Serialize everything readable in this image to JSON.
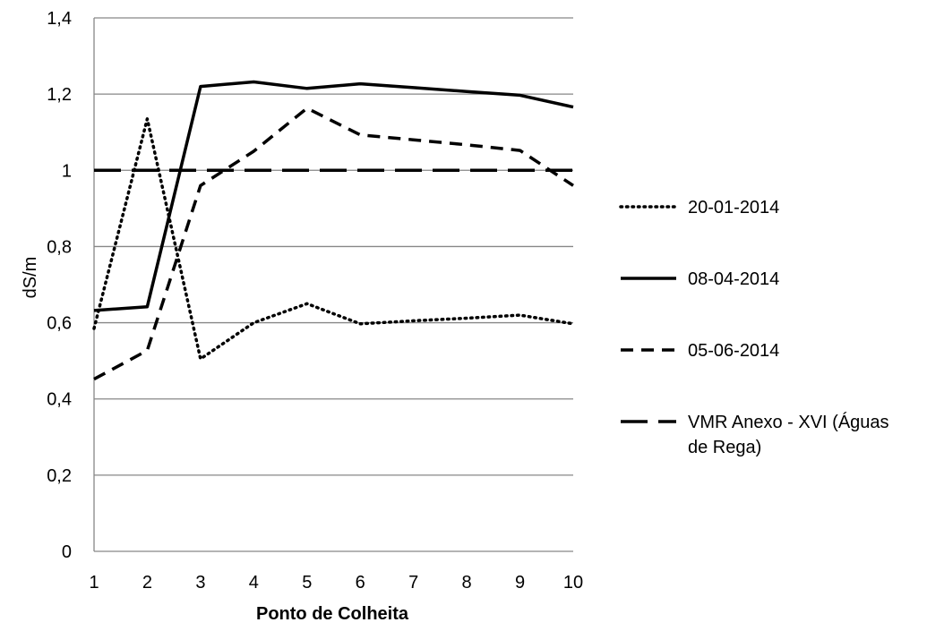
{
  "chart_data": {
    "type": "line",
    "title": "",
    "xlabel": "Ponto de Colheita",
    "ylabel": "dS/m",
    "x": [
      1,
      2,
      3,
      4,
      5,
      6,
      7,
      8,
      9,
      10
    ],
    "x_tick_labels": [
      "1",
      "2",
      "3",
      "4",
      "5",
      "6",
      "7",
      "8",
      "9",
      "10"
    ],
    "ylim": [
      0,
      1.4
    ],
    "y_ticks": [
      0,
      0.2,
      0.4,
      0.6,
      0.8,
      1,
      1.2,
      1.4
    ],
    "y_tick_labels": [
      "0",
      "0,2",
      "0,4",
      "0,6",
      "0,8",
      "1",
      "1,2",
      "1,4"
    ],
    "grid": "horizontal",
    "legend_position": "right",
    "series": [
      {
        "name": "20-01-2014",
        "style": "dotted",
        "color": "#000000",
        "values": [
          0.585,
          1.135,
          0.505,
          0.6,
          0.65,
          0.597,
          0.605,
          0.612,
          0.62,
          0.597
        ]
      },
      {
        "name": "08-04-2014",
        "style": "solid",
        "color": "#000000",
        "values": [
          0.632,
          0.642,
          1.22,
          1.232,
          1.215,
          1.227,
          1.217,
          1.207,
          1.197,
          1.166
        ]
      },
      {
        "name": "05-06-2014",
        "style": "dashed",
        "color": "#000000",
        "values": [
          0.452,
          0.527,
          0.96,
          1.05,
          1.163,
          1.093,
          1.08,
          1.067,
          1.052,
          0.96
        ]
      },
      {
        "name": "VMR Anexo - XVI (Águas de Rega)",
        "style": "long-dash",
        "color": "#000000",
        "values": [
          1,
          1,
          1,
          1,
          1,
          1,
          1,
          1,
          1,
          1
        ]
      }
    ]
  },
  "legend": {
    "items": [
      {
        "lines": [
          "20-01-2014"
        ]
      },
      {
        "lines": [
          "08-04-2014"
        ]
      },
      {
        "lines": [
          "05-06-2014"
        ]
      },
      {
        "lines": [
          "VMR Anexo - XVI (Águas",
          "de Rega)"
        ]
      }
    ]
  }
}
